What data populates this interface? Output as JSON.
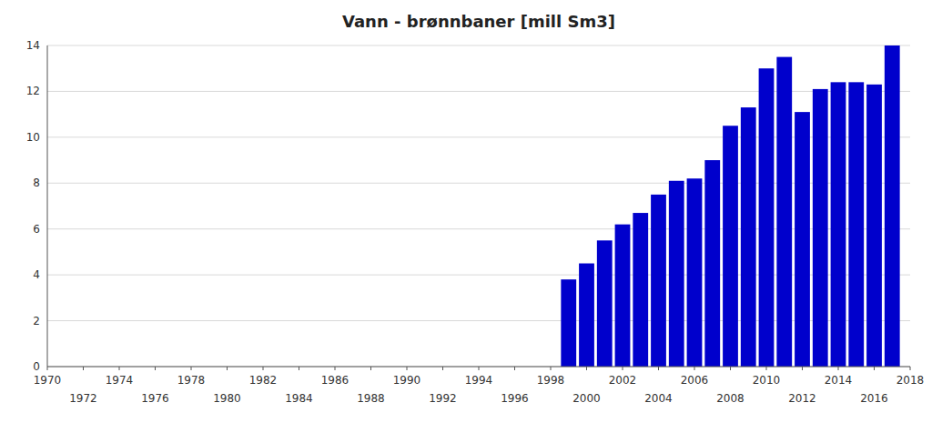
{
  "chart_data": {
    "type": "bar",
    "title": "Vann - brønnbaner [mill Sm3]",
    "x": [
      1999,
      2000,
      2001,
      2002,
      2003,
      2004,
      2005,
      2006,
      2007,
      2008,
      2009,
      2010,
      2011,
      2012,
      2013,
      2014,
      2015,
      2016,
      2017
    ],
    "values": [
      3.8,
      4.5,
      5.5,
      6.2,
      6.7,
      7.5,
      8.1,
      8.2,
      9.0,
      10.5,
      11.3,
      13.0,
      13.5,
      11.1,
      12.1,
      12.4,
      12.4,
      12.3,
      14.0
    ],
    "color": "#0000CC",
    "xlim": [
      1970,
      2018
    ],
    "ylim": [
      0,
      14
    ],
    "xticks": [
      1970,
      1972,
      1974,
      1976,
      1978,
      1980,
      1982,
      1984,
      1986,
      1988,
      1990,
      1992,
      1994,
      1996,
      1998,
      2000,
      2002,
      2004,
      2006,
      2008,
      2010,
      2012,
      2014,
      2016,
      2018
    ],
    "yticks": [
      0,
      2,
      4,
      6,
      8,
      10,
      12,
      14
    ],
    "grid": true
  }
}
